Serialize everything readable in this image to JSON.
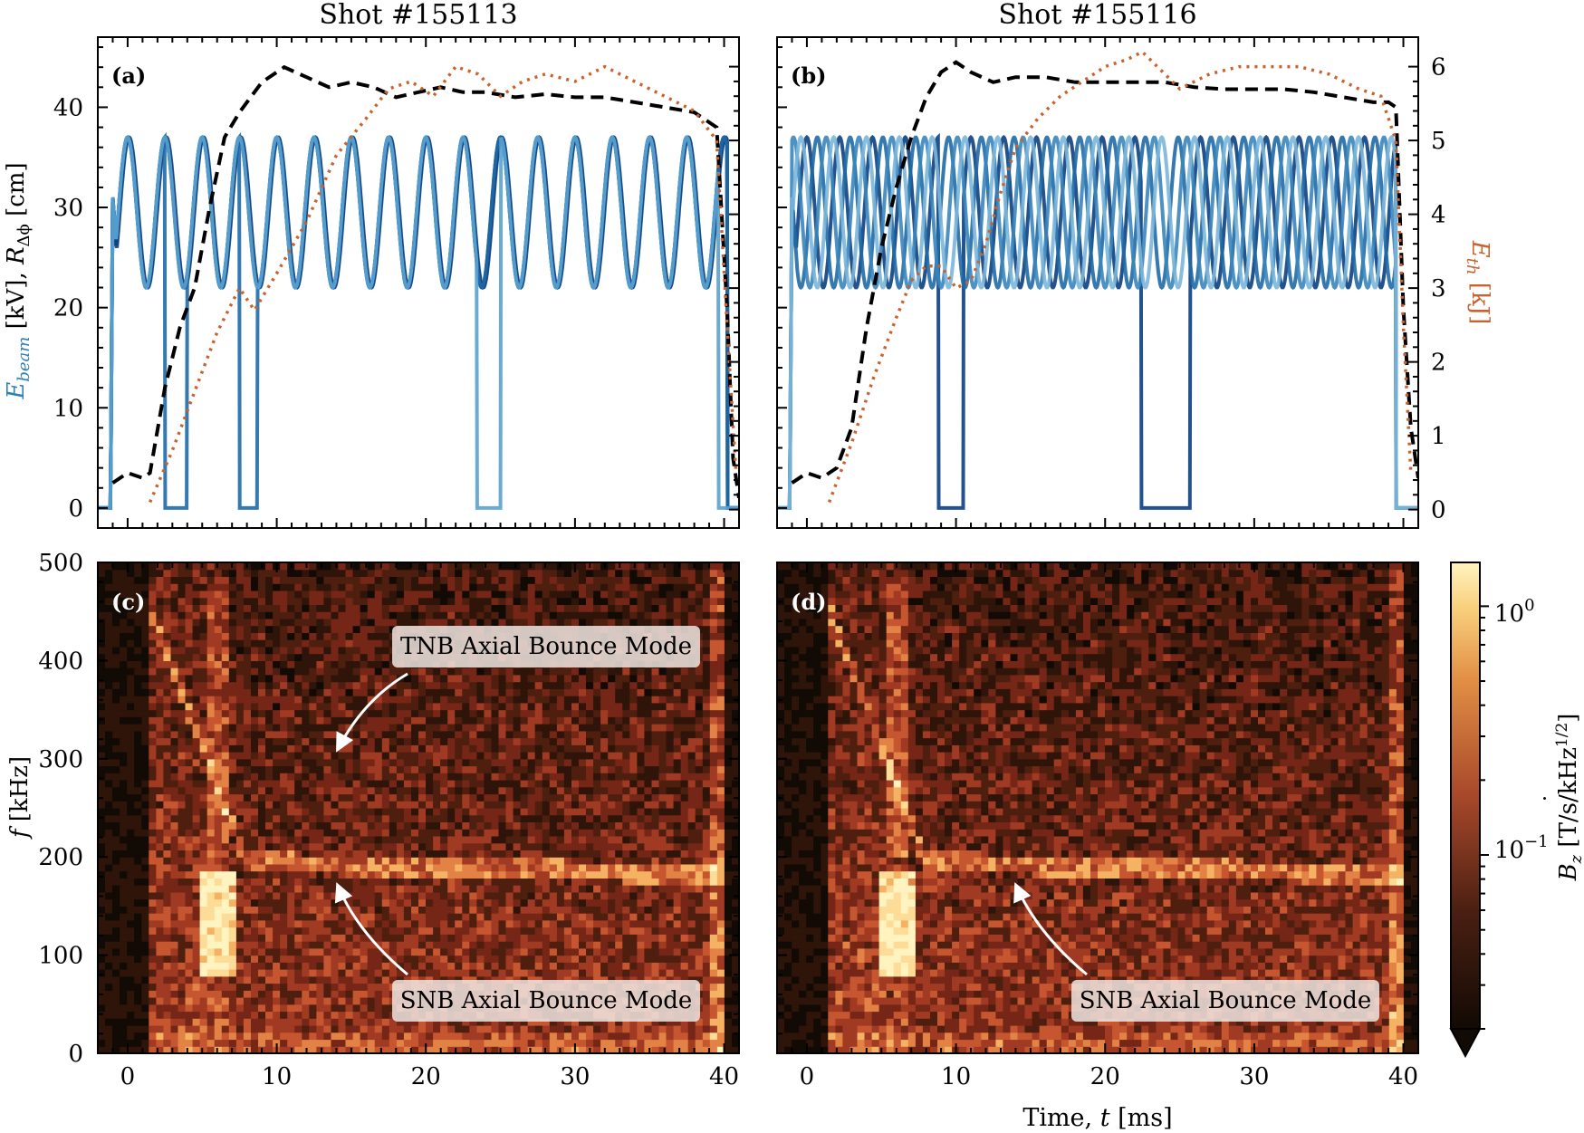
{
  "figure": {
    "titles": [
      "Shot #155113",
      "Shot #155116"
    ],
    "panel_labels": [
      "(a)",
      "(b)",
      "(c)",
      "(d)"
    ],
    "left_ylabel_top": {
      "prefix": "E",
      "prefix_sub": "beam",
      "mid": " [kV],  ",
      "r": "R",
      "r_sub": "Δϕ",
      "suffix": " [cm]"
    },
    "right_ylabel_top": {
      "e": "E",
      "e_sub": "th",
      "suffix": " [kJ]"
    },
    "ylabel_bottom": {
      "f": "f",
      "suffix": " [kHz]"
    },
    "xlabel": {
      "prefix": "Time, ",
      "t": "t",
      "suffix": " [ms]"
    },
    "colorbar_label": {
      "b": "B",
      "sub": "z",
      "suffix": " [T/s/kHz",
      "sup": "1/2",
      "close": "]"
    },
    "colorbar_ticks": [
      {
        "mant": "10",
        "exp": "0"
      },
      {
        "mant": "10",
        "exp": "−1"
      }
    ],
    "annotations": {
      "tnb": "TNB Axial Bounce Mode",
      "snb_c": "SNB Axial Bounce Mode",
      "snb_d": "SNB Axial Bounce Mode"
    },
    "colors": {
      "beam_dark": "#0b3f80",
      "beam_mid": "#1f6aa5",
      "beam_light": "#5aa2cf",
      "r_dphi": "#000000",
      "eth": "#c8632f",
      "spectrogram_dark": "#1e1208",
      "spectrogram_mid": "#a8482a",
      "spectrogram_bright": "#fff3c0"
    }
  },
  "chart_data": [
    {
      "panel": "(a)",
      "type": "line",
      "title": "Shot #155113",
      "xlim": [
        -2,
        41
      ],
      "ylim_left": [
        -2,
        47
      ],
      "ylim_right": [
        -0.25,
        6.4
      ],
      "yticks_left": [
        0,
        10,
        20,
        30,
        40
      ],
      "yticks_right": [
        0,
        1,
        2,
        3,
        4,
        5,
        6
      ],
      "series": [
        {
          "axis": "left",
          "style": "solid",
          "color": "#0b3f80",
          "channels": 3,
          "period_ms": 2.5,
          "phase_ms": 0.0,
          "oscillation_kV": [
            22,
            37
          ],
          "on_ms": [
            -1.0,
            40.2
          ],
          "dropouts_ms": []
        },
        {
          "axis": "left",
          "style": "solid",
          "color": "#1f6aa5",
          "channels": 1,
          "period_ms": 2.5,
          "phase_ms": 0.0,
          "oscillation_kV": [
            22,
            37
          ],
          "on_ms": [
            -1.0,
            40.2
          ],
          "dropouts_ms": [
            [
              2.5,
              4.0
            ],
            [
              7.5,
              8.7
            ]
          ]
        },
        {
          "axis": "left",
          "style": "solid",
          "color": "#5aa2cf",
          "channels": 1,
          "period_ms": 2.5,
          "phase_ms": 0.0,
          "oscillation_kV": [
            22,
            37
          ],
          "on_ms": [
            -1.0,
            39.6
          ],
          "dropouts_ms": [
            [
              23.4,
              25.0
            ]
          ]
        },
        {
          "axis": "left",
          "style": "dashed",
          "color": "#000000",
          "x": [
            -1.0,
            0.0,
            1.0,
            1.5,
            2.5,
            3.5,
            4.5,
            5.5,
            6.5,
            7.5,
            9.0,
            10.5,
            12.0,
            13.5,
            15.0,
            16.5,
            18.0,
            19.5,
            21.0,
            22.5,
            24.0,
            26.0,
            28.0,
            30.0,
            32.0,
            34.0,
            36.0,
            38.0,
            39.5,
            40.2,
            40.6,
            41.0
          ],
          "y": [
            2.5,
            3.5,
            3.0,
            3.5,
            12.0,
            18.0,
            22.0,
            30.0,
            37.0,
            39.5,
            42.5,
            44.0,
            43.0,
            42.0,
            42.5,
            42.0,
            41.0,
            41.5,
            42.0,
            41.5,
            41.5,
            41.0,
            41.3,
            41.0,
            41.0,
            40.5,
            40.0,
            39.5,
            38.0,
            20.0,
            5.0,
            1.0
          ]
        },
        {
          "axis": "right",
          "style": "dotted",
          "color": "#c8632f",
          "x": [
            1.5,
            3.0,
            4.5,
            6.0,
            7.5,
            8.5,
            10.0,
            12.0,
            14.0,
            16.0,
            17.5,
            19.0,
            20.5,
            22.0,
            23.5,
            25.0,
            26.5,
            28.0,
            30.0,
            32.0,
            34.0,
            36.0,
            38.0,
            39.5,
            40.2,
            40.8
          ],
          "y": [
            0.1,
            0.8,
            1.6,
            2.4,
            3.0,
            2.7,
            3.2,
            3.9,
            4.8,
            5.3,
            5.7,
            5.8,
            5.6,
            6.0,
            5.9,
            5.6,
            5.8,
            5.9,
            5.8,
            6.0,
            5.8,
            5.6,
            5.4,
            5.0,
            2.5,
            0.5
          ]
        }
      ]
    },
    {
      "panel": "(b)",
      "type": "line",
      "title": "Shot #155116",
      "xlim": [
        -2,
        41
      ],
      "ylim_left": [
        -2,
        47
      ],
      "ylim_right": [
        -0.25,
        6.4
      ],
      "yticks_left": [
        0,
        10,
        20,
        30,
        40
      ],
      "yticks_right": [
        0,
        1,
        2,
        3,
        4,
        5,
        6
      ],
      "series": [
        {
          "axis": "left",
          "style": "solid",
          "color": "#0b3f80",
          "channels": 1,
          "period_ms": 2.2,
          "phase_ms": 0.0,
          "oscillation_kV": [
            22,
            37
          ],
          "on_ms": [
            -1.0,
            39.5
          ],
          "dropouts_ms": [
            [
              8.8,
              10.5
            ],
            [
              22.4,
              25.7
            ]
          ]
        },
        {
          "axis": "left",
          "style": "solid",
          "color": "#1f6aa5",
          "channels": 1,
          "period_ms": 2.2,
          "phase_ms": 0.7,
          "oscillation_kV": [
            22,
            37
          ],
          "on_ms": [
            -1.0,
            39.5
          ],
          "dropouts_ms": []
        },
        {
          "axis": "left",
          "style": "solid",
          "color": "#3a86bd",
          "channels": 1,
          "period_ms": 2.2,
          "phase_ms": 1.3,
          "oscillation_kV": [
            22,
            37
          ],
          "on_ms": [
            -1.0,
            39.5
          ],
          "dropouts_ms": []
        },
        {
          "axis": "left",
          "style": "solid",
          "color": "#7cb6da",
          "channels": 1,
          "period_ms": 2.2,
          "phase_ms": 1.8,
          "oscillation_kV": [
            22,
            37
          ],
          "on_ms": [
            -1.0,
            39.5
          ],
          "dropouts_ms": []
        },
        {
          "axis": "left",
          "style": "dashed",
          "color": "#000000",
          "x": [
            -1.0,
            0.0,
            1.0,
            2.0,
            3.0,
            4.0,
            5.0,
            6.0,
            7.0,
            8.0,
            9.0,
            10.0,
            11.0,
            12.5,
            14.0,
            16.0,
            18.0,
            20.0,
            22.0,
            24.0,
            26.0,
            28.0,
            30.0,
            32.0,
            34.0,
            36.0,
            38.0,
            39.0,
            39.5,
            40.0,
            40.5,
            41.0
          ],
          "y": [
            2.5,
            3.5,
            3.0,
            4.0,
            8.0,
            18.0,
            26.0,
            32.0,
            37.0,
            41.0,
            43.5,
            44.5,
            43.5,
            42.5,
            43.0,
            43.0,
            42.5,
            42.5,
            42.5,
            42.5,
            42.0,
            41.8,
            41.8,
            41.8,
            41.5,
            41.0,
            40.5,
            40.5,
            40.0,
            20.0,
            8.0,
            3.0
          ]
        },
        {
          "axis": "right",
          "style": "dotted",
          "color": "#c8632f",
          "x": [
            1.5,
            3.0,
            4.5,
            6.0,
            7.0,
            8.0,
            9.0,
            10.0,
            11.0,
            12.0,
            13.0,
            14.0,
            15.5,
            17.0,
            18.5,
            20.0,
            21.5,
            22.5,
            23.5,
            25.0,
            27.0,
            29.0,
            31.0,
            33.0,
            35.0,
            37.0,
            38.5,
            39.5,
            40.0,
            40.5
          ],
          "y": [
            0.1,
            0.9,
            1.8,
            2.6,
            3.1,
            3.3,
            3.3,
            3.0,
            3.1,
            3.6,
            4.3,
            4.9,
            5.3,
            5.6,
            5.8,
            6.0,
            6.1,
            6.2,
            6.0,
            5.7,
            5.9,
            6.0,
            6.0,
            6.0,
            5.9,
            5.7,
            5.6,
            5.0,
            2.5,
            0.5
          ]
        }
      ]
    },
    {
      "panel": "(c)",
      "type": "heatmap",
      "xlim": [
        -2,
        41
      ],
      "ylim": [
        0,
        500
      ],
      "xticks": [
        0,
        10,
        20,
        30,
        40
      ],
      "yticks": [
        0,
        100,
        200,
        300,
        400,
        500
      ],
      "colorscale": "log",
      "colorbar_range": [
        0.02,
        1.5
      ],
      "features": [
        {
          "name": "TNB Axial Bounce Mode",
          "t_ms": [
            13.5,
            14.0
          ],
          "f_kHz": 300
        },
        {
          "name": "SNB Axial Bounce Mode",
          "t_ms": [
            8.0,
            14.0
          ],
          "f_kHz": [
            195,
            180
          ]
        },
        {
          "name": "intense burst",
          "t_ms": [
            5.0,
            7.0
          ],
          "f_kHz": [
            95,
            180
          ]
        }
      ]
    },
    {
      "panel": "(d)",
      "type": "heatmap",
      "xlim": [
        -2,
        41
      ],
      "ylim": [
        0,
        500
      ],
      "xticks": [
        0,
        10,
        20,
        30,
        40
      ],
      "yticks": [
        0,
        100,
        200,
        300,
        400,
        500
      ],
      "colorscale": "log",
      "colorbar_range": [
        0.02,
        1.5
      ],
      "features": [
        {
          "name": "SNB Axial Bounce Mode",
          "t_ms": [
            8.0,
            14.0
          ],
          "f_kHz": [
            195,
            180
          ]
        },
        {
          "name": "intense burst",
          "t_ms": [
            5.0,
            7.0
          ],
          "f_kHz": [
            95,
            170
          ]
        }
      ]
    }
  ]
}
